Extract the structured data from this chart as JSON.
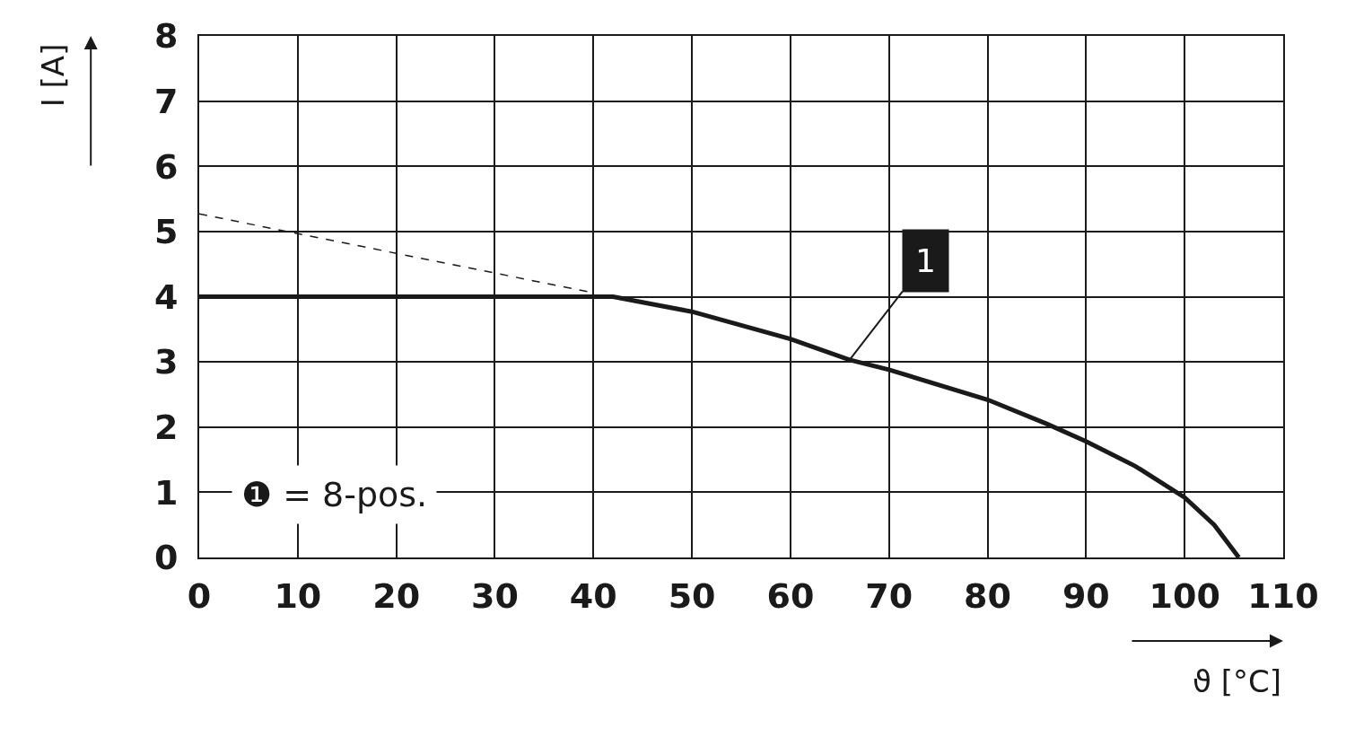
{
  "chart_data": {
    "type": "line",
    "xlabel": "ϑ [°C]",
    "ylabel": "I [A]",
    "series": [
      {
        "color": "#1a1a1a",
        "line_style": "solid",
        "x": [
          0,
          42,
          50,
          60,
          66,
          70,
          80,
          86,
          90,
          95,
          100,
          103,
          105.5
        ],
        "values": [
          4,
          4,
          3.77,
          3.35,
          3.03,
          2.88,
          2.42,
          2.05,
          1.78,
          1.4,
          0.92,
          0.5,
          0
        ]
      },
      {
        "color": "#1a1a1a",
        "line_style": "dashed",
        "x": [
          0,
          40
        ],
        "values": [
          5.27,
          4.06
        ]
      }
    ],
    "xlim": [
      0,
      110
    ],
    "xticks": [
      0,
      10,
      20,
      30,
      40,
      50,
      60,
      70,
      80,
      90,
      100,
      110
    ],
    "ylim": [
      0,
      8
    ],
    "yticks": [
      0,
      1,
      2,
      3,
      4,
      5,
      6,
      7,
      8
    ],
    "grid": true,
    "annotations": [
      {
        "text": "1",
        "x": 66,
        "y": 3.03
      },
      "❶ = 8-pos."
    ]
  }
}
